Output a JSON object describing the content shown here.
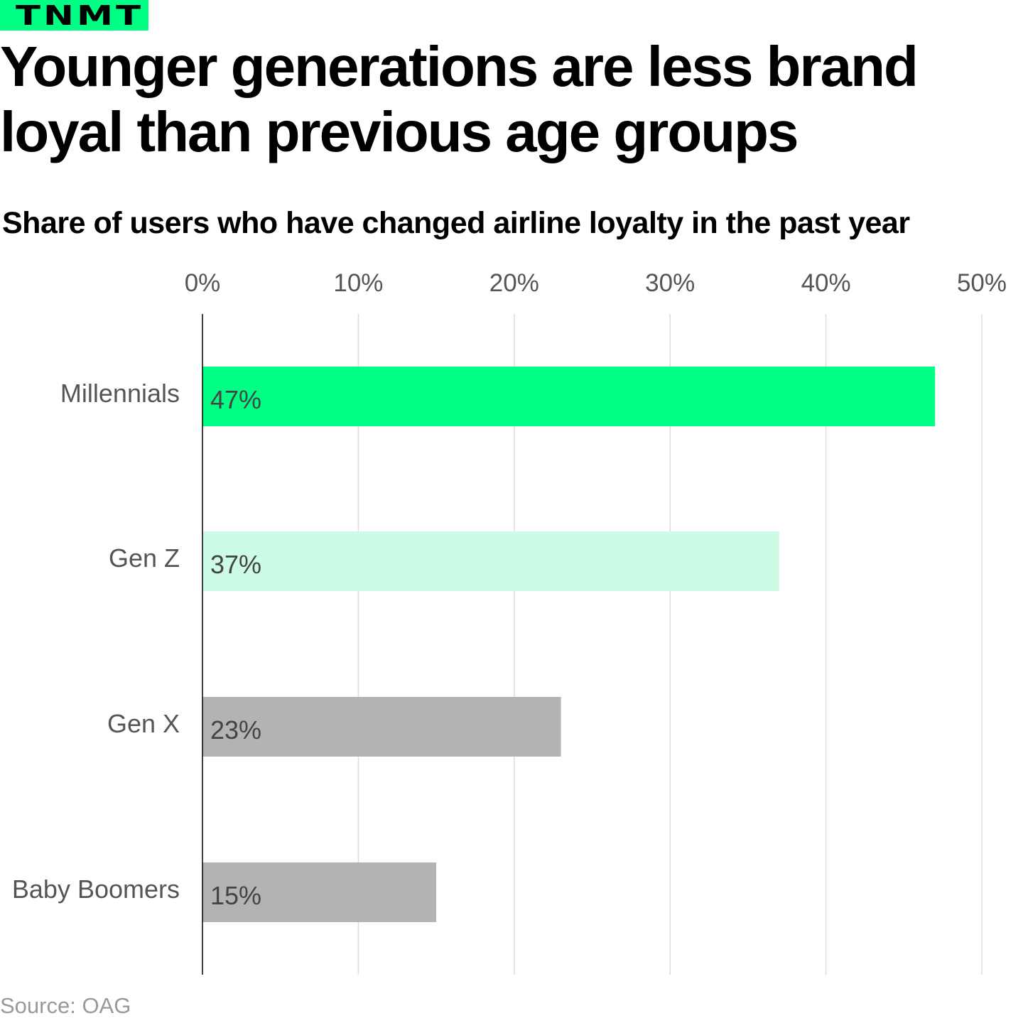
{
  "brand": {
    "logo_text": "TNMT",
    "color": "#00ff85"
  },
  "title": "Younger generations are less brand loyal than previous age groups",
  "subtitle": "Share of users who have changed airline loyalty in the past year",
  "source": "Source: OAG",
  "chart_data": {
    "type": "bar",
    "orientation": "horizontal",
    "title": "Share of users who have changed airline loyalty in the past year",
    "categories": [
      "Millennials",
      "Gen Z",
      "Gen X",
      "Baby Boomers"
    ],
    "values": [
      47,
      37,
      23,
      15
    ],
    "data_labels": [
      "47%",
      "37%",
      "23%",
      "15%"
    ],
    "colors": [
      "#00ff85",
      "#ccfce5",
      "#b3b3b3",
      "#b3b3b3"
    ],
    "xlim": [
      0,
      50
    ],
    "x_ticks": [
      0,
      10,
      20,
      30,
      40,
      50
    ],
    "x_tick_labels": [
      "0%",
      "10%",
      "20%",
      "30%",
      "40%",
      "50%"
    ],
    "x_axis_position": "top",
    "grid": true,
    "xlabel": "",
    "ylabel": ""
  }
}
